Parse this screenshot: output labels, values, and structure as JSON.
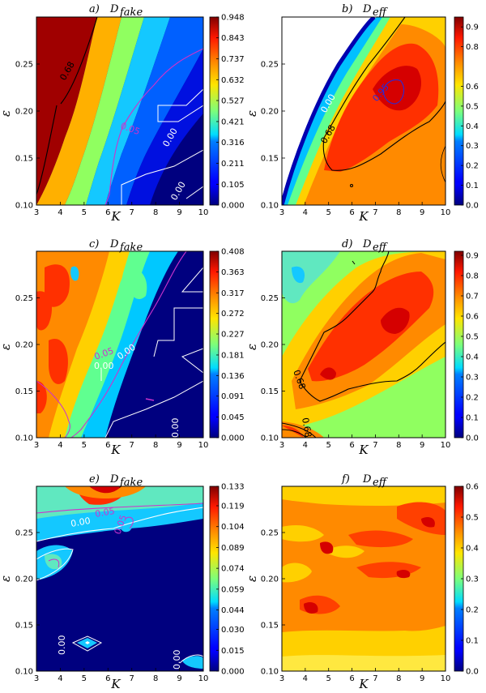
{
  "chart_data": [
    {
      "type": "heatmap",
      "panel": "a)",
      "title_sym": "D",
      "title_sub": "fake",
      "xlabel": "K",
      "ylabel": "ε",
      "xlim": [
        3,
        10
      ],
      "ylim": [
        0.1,
        0.3
      ],
      "x_ticks": [
        "3",
        "4",
        "5",
        "6",
        "7",
        "8",
        "9",
        "10"
      ],
      "y_ticks": [
        "0.10",
        "0.15",
        "0.20",
        "0.25"
      ],
      "colorbar_ticks": [
        "0.948",
        "0.843",
        "0.737",
        "0.632",
        "0.527",
        "0.421",
        "0.316",
        "0.211",
        "0.105",
        "0.000"
      ],
      "vmin": 0.0,
      "vmax": 0.948,
      "contour_labels": [
        {
          "text": "0.68",
          "color": "#000000"
        },
        {
          "text": "0.05",
          "color": "#cc33cc"
        },
        {
          "text": "0.00",
          "color": "#ffffff"
        },
        {
          "text": "0.00",
          "color": "#ffffff"
        }
      ]
    },
    {
      "type": "heatmap",
      "panel": "b)",
      "title_sym": "D",
      "title_sub": "eff",
      "xlabel": "K",
      "ylabel": "ε",
      "xlim": [
        3,
        10
      ],
      "ylim": [
        0.1,
        0.3
      ],
      "x_ticks": [
        "3",
        "4",
        "5",
        "6",
        "7",
        "8",
        "9",
        "10"
      ],
      "y_ticks": [
        "0.10",
        "0.15",
        "0.20",
        "0.25"
      ],
      "colorbar_ticks": [
        "0.9",
        "0.8",
        "0.6",
        "0.5",
        "0.4",
        "0.3",
        "0.2",
        "0.1",
        "0.0"
      ],
      "vmin": 0.0,
      "vmax": 0.95,
      "contour_labels": [
        {
          "text": "0.68",
          "color": "#000000"
        },
        {
          "text": "0.00",
          "color": "#ffffff"
        },
        {
          "text": "0.95",
          "color": "#2a2ad8"
        }
      ]
    },
    {
      "type": "heatmap",
      "panel": "c)",
      "title_sym": "D",
      "title_sub": "fake",
      "xlabel": "K",
      "ylabel": "ε",
      "xlim": [
        3,
        10
      ],
      "ylim": [
        0.1,
        0.3
      ],
      "x_ticks": [
        "3",
        "4",
        "5",
        "6",
        "7",
        "8",
        "9",
        "10"
      ],
      "y_ticks": [
        "0.10",
        "0.15",
        "0.20",
        "0.25"
      ],
      "colorbar_ticks": [
        "0.408",
        "0.363",
        "0.317",
        "0.272",
        "0.227",
        "0.181",
        "0.136",
        "0.091",
        "0.045",
        "0.000"
      ],
      "vmin": 0.0,
      "vmax": 0.408,
      "contour_labels": [
        {
          "text": "0.05",
          "color": "#cc33cc"
        },
        {
          "text": "0.00",
          "color": "#ffffff"
        },
        {
          "text": "0.00",
          "color": "#ffffff"
        },
        {
          "text": "0.00",
          "color": "#ffffff"
        }
      ]
    },
    {
      "type": "heatmap",
      "panel": "d)",
      "title_sym": "D",
      "title_sub": "eff",
      "xlabel": "K",
      "ylabel": "ε",
      "xlim": [
        3,
        10
      ],
      "ylim": [
        0.1,
        0.3
      ],
      "x_ticks": [
        "3",
        "4",
        "5",
        "6",
        "7",
        "8",
        "9",
        "10"
      ],
      "y_ticks": [
        "0.10",
        "0.15",
        "0.20",
        "0.25"
      ],
      "colorbar_ticks": [
        "0.9",
        "0.8",
        "0.7",
        "0.6",
        "0.5",
        "0.4",
        "0.3",
        "0.2",
        "0.1",
        "0.0"
      ],
      "vmin": 0.0,
      "vmax": 0.92,
      "contour_labels": [
        {
          "text": "0.68",
          "color": "#000000"
        },
        {
          "text": "0.68",
          "color": "#000000"
        }
      ]
    },
    {
      "type": "heatmap",
      "panel": "e)",
      "title_sym": "D",
      "title_sub": "fake",
      "xlabel": "K",
      "ylabel": "ε",
      "xlim": [
        3,
        10
      ],
      "ylim": [
        0.1,
        0.3
      ],
      "x_ticks": [
        "3",
        "4",
        "5",
        "6",
        "7",
        "8",
        "9",
        "10"
      ],
      "y_ticks": [
        "0.10",
        "0.15",
        "0.20",
        "0.25"
      ],
      "colorbar_ticks": [
        "0.133",
        "0.119",
        "0.104",
        "0.089",
        "0.074",
        "0.059",
        "0.044",
        "0.030",
        "0.015",
        "0.000"
      ],
      "vmin": 0.0,
      "vmax": 0.133,
      "contour_labels": [
        {
          "text": "0.05",
          "color": "#cc33cc"
        },
        {
          "text": "0.00",
          "color": "#ffffff"
        },
        {
          "text": "0.05",
          "color": "#cc33cc"
        },
        {
          "text": "0.00",
          "color": "#ffffff"
        },
        {
          "text": "0.00",
          "color": "#ffffff"
        }
      ]
    },
    {
      "type": "heatmap",
      "panel": "f)",
      "title_sym": "D",
      "title_sub": "eff",
      "xlabel": "K",
      "ylabel": "ε",
      "xlim": [
        3,
        10
      ],
      "ylim": [
        0.1,
        0.3
      ],
      "x_ticks": [
        "3",
        "4",
        "5",
        "6",
        "7",
        "8",
        "9",
        "10"
      ],
      "y_ticks": [
        "0.10",
        "0.15",
        "0.20",
        "0.25"
      ],
      "colorbar_ticks": [
        "0.6",
        "0.5",
        "0.4",
        "0.3",
        "0.2",
        "0.1",
        "0.0"
      ],
      "vmin": 0.0,
      "vmax": 0.6,
      "contour_labels": []
    }
  ]
}
